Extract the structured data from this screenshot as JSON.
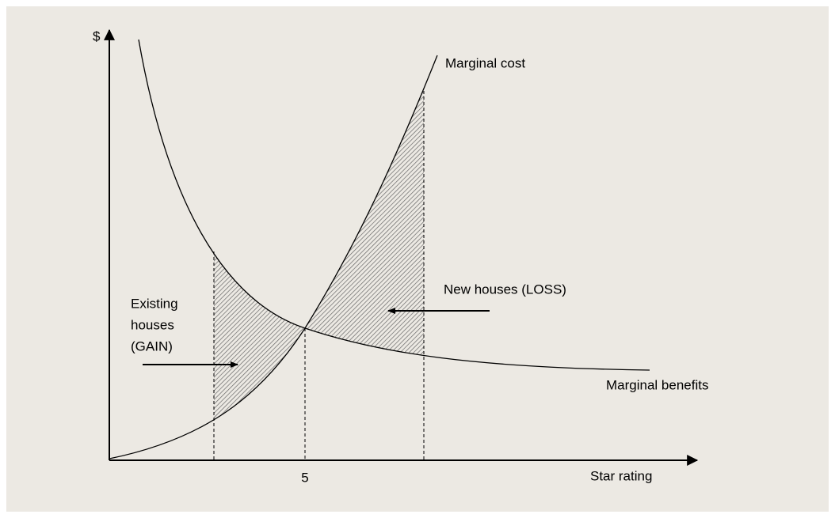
{
  "y_axis_label": "$",
  "x_axis_label": "Star rating",
  "x_tick": "5",
  "curves": {
    "cost": "Marginal cost",
    "benefits": "Marginal benefits"
  },
  "regions": {
    "loss": "New houses (LOSS)",
    "gain": [
      "Existing",
      "houses",
      "(GAIN)"
    ]
  }
}
